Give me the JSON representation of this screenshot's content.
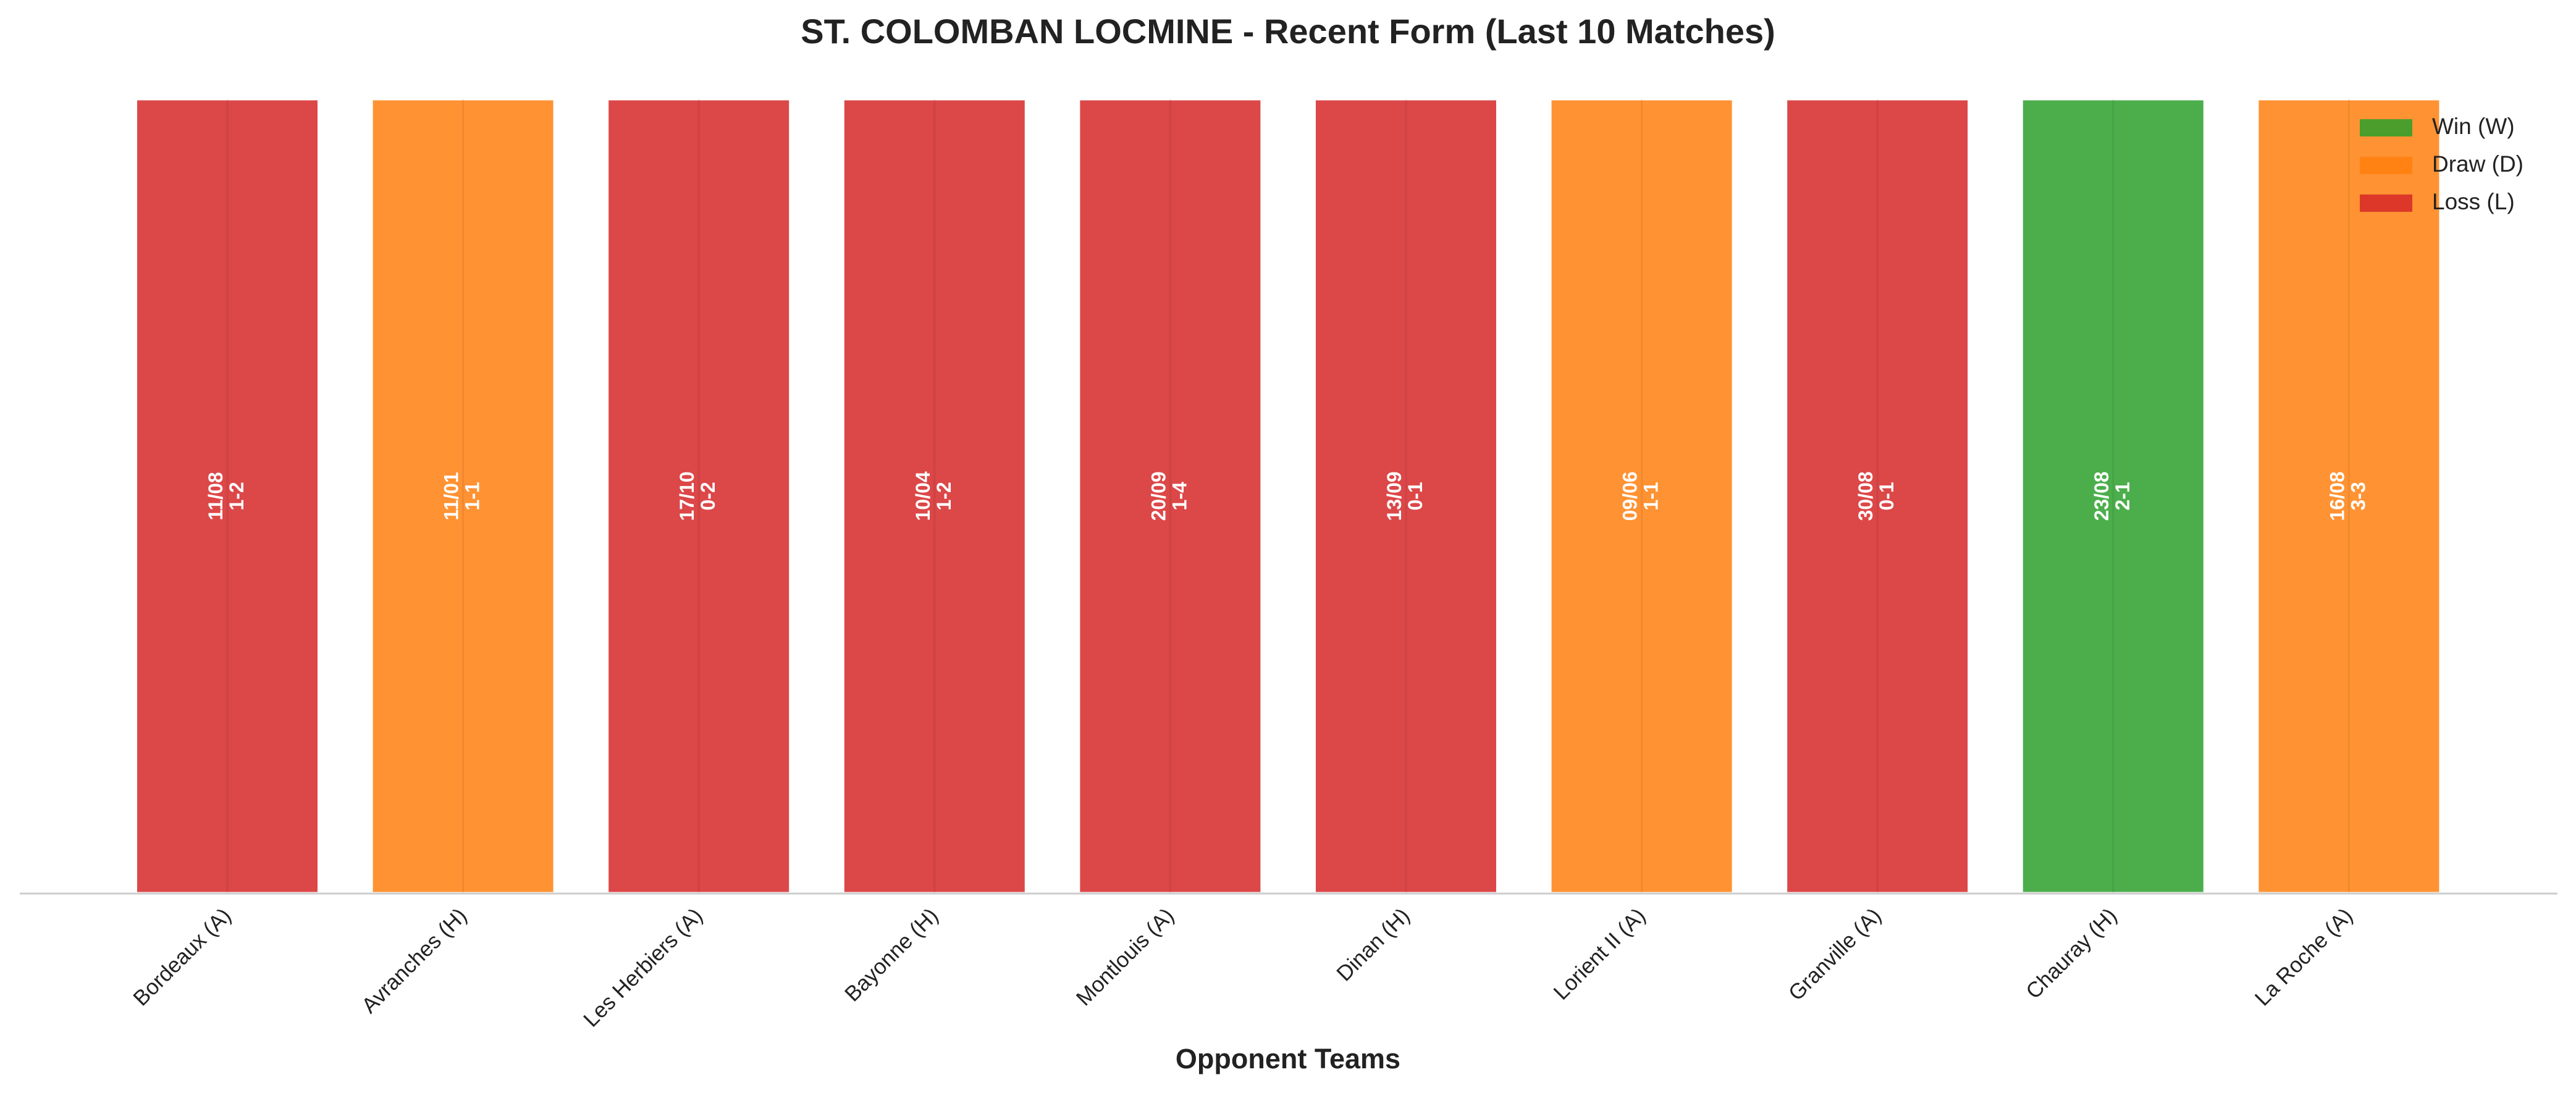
{
  "chart_data": {
    "type": "bar",
    "title": "ST. COLOMBAN LOCMINE - Recent Form (Last 10 Matches)",
    "x_label": "Opponent Teams",
    "categories": [
      "Bordeaux (A)",
      "Avranches (H)",
      "Les Herbiers (A)",
      "Bayonne (H)",
      "Montlouis (A)",
      "Dinan (H)",
      "Lorient II (A)",
      "Granville (A)",
      "Chauray (H)",
      "La Roche (A)"
    ],
    "values": [
      1,
      1,
      1,
      1,
      1,
      1,
      1,
      1,
      1,
      1
    ],
    "colors": [
      "#d62728",
      "#ff7f0e",
      "#d62728",
      "#d62728",
      "#d62728",
      "#d62728",
      "#ff7f0e",
      "#d62728",
      "#2ca02c",
      "#ff7f0e"
    ],
    "dates": [
      "11/08",
      "11/01",
      "17/10",
      "10/04",
      "20/09",
      "13/09",
      "09/06",
      "30/08",
      "23/08",
      "16/08"
    ],
    "scores": [
      "1-2",
      "1-1",
      "0-2",
      "1-2",
      "1-4",
      "0-1",
      "1-1",
      "0-1",
      "2-1",
      "3-3"
    ],
    "ylim": [
      0,
      1
    ],
    "legend_position": "upper right",
    "legend": [
      {
        "name": "Win (W)",
        "color": "#2ca02c"
      },
      {
        "name": "Draw (D)",
        "color": "#ff7f0e"
      },
      {
        "name": "Loss (L)",
        "color": "#d62728"
      }
    ]
  }
}
